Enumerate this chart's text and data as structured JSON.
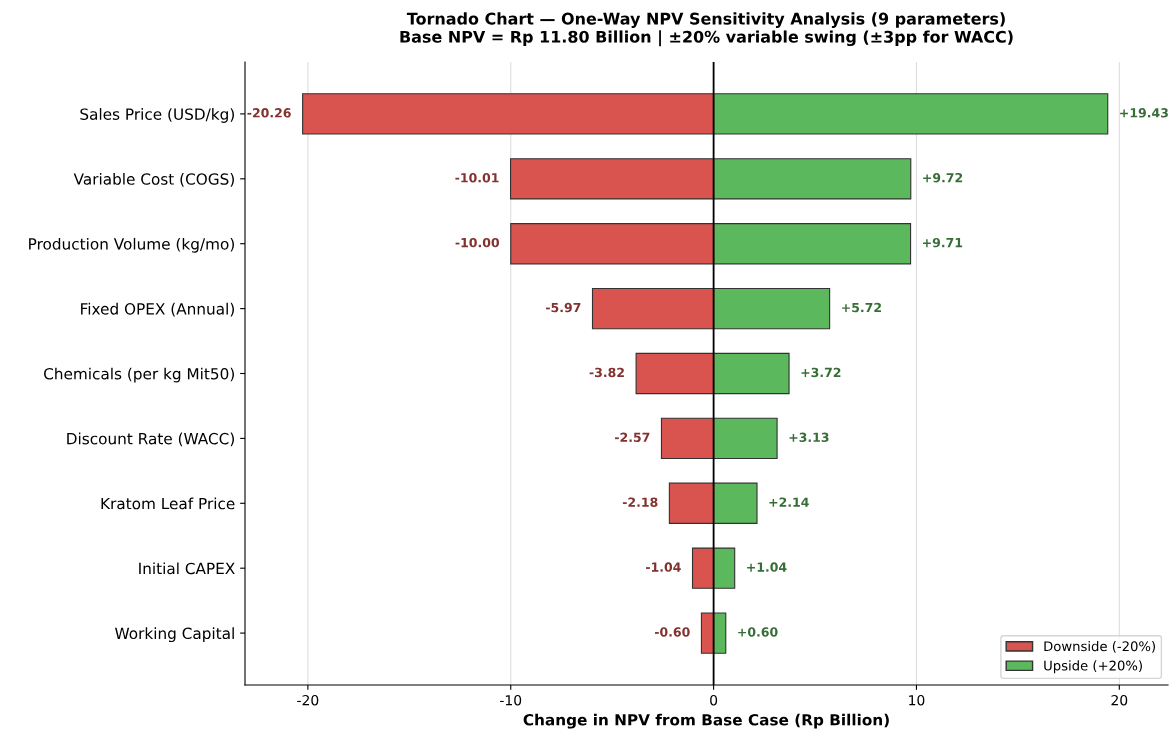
{
  "chart_data": {
    "type": "bar",
    "orientation": "horizontal",
    "stacked": true,
    "title": "Tornado Chart — One-Way NPV Sensitivity Analysis (9 parameters)\nBase NPV = Rp 11.80 Billion | ±20% variable swing (±3pp for WACC)",
    "xlabel": "Change in NPV from Base Case (Rp Billion)",
    "categories": [
      "Sales Price (USD/kg)",
      "Variable Cost (COGS)",
      "Production Volume (kg/mo)",
      "Fixed OPEX (Annual)",
      "Chemicals (per kg Mit50)",
      "Discount Rate (WACC)",
      "Kratom Leaf Price",
      "Initial CAPEX",
      "Working Capital"
    ],
    "series": [
      {
        "name": "Downside (-20%)",
        "color": "#d9534f",
        "values": [
          -20.26,
          -10.01,
          -10.0,
          -5.97,
          -3.82,
          -2.57,
          -2.18,
          -1.04,
          -0.6
        ],
        "value_labels": [
          "-20.26",
          "-10.01",
          "-10.00",
          "-5.97",
          "-3.82",
          "-2.57",
          "-2.18",
          "-1.04",
          "-0.60"
        ]
      },
      {
        "name": "Upside (+20%)",
        "color": "#5cb85c",
        "values": [
          19.43,
          9.72,
          9.71,
          5.72,
          3.72,
          3.13,
          2.14,
          1.04,
          0.6
        ],
        "value_labels": [
          "+19.43",
          "+9.72",
          "+9.71",
          "+5.72",
          "+3.72",
          "+3.13",
          "+2.14",
          "+1.04",
          "+0.60"
        ]
      }
    ],
    "xlim": [
      -23.1,
      22.4
    ],
    "xticks": [
      -20,
      -10,
      0,
      10,
      20
    ],
    "ref_lines": [
      {
        "axis": "x",
        "value": 0,
        "color": "#000000"
      }
    ],
    "grid": "x",
    "legend": "bottom right"
  }
}
